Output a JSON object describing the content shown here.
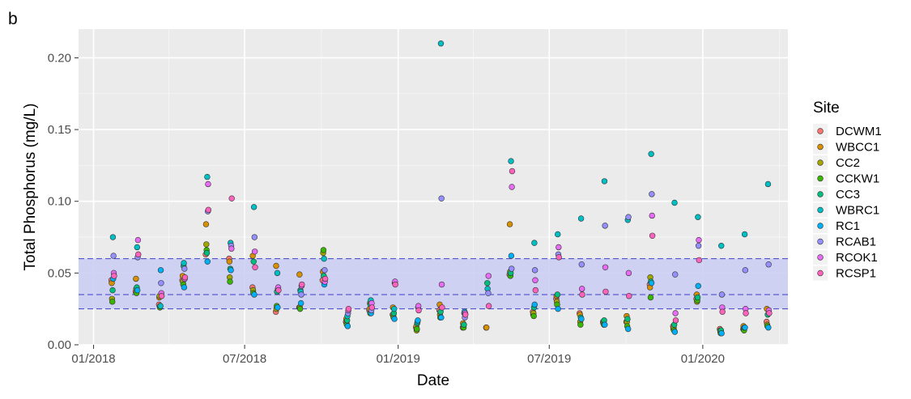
{
  "panel_label": "b",
  "chart_data": {
    "type": "scatter",
    "xlabel": "Date",
    "ylabel": "Total Phosphorus (mg/L)",
    "xlim": [
      "2017-12-14",
      "2020-04-12"
    ],
    "ylim": [
      0,
      0.22
    ],
    "x_ticks": [
      "2018-01-01",
      "2018-07-01",
      "2019-01-01",
      "2019-07-01",
      "2020-01-01"
    ],
    "x_tick_labels": [
      "01/2018",
      "07/2018",
      "01/2019",
      "07/2019",
      "01/2020"
    ],
    "y_ticks": [
      0,
      0.05,
      0.1,
      0.15,
      0.2
    ],
    "y_tick_labels": [
      "0.00",
      "0.05",
      "0.10",
      "0.15",
      "0.20"
    ],
    "grid": true,
    "background": "#ebebeb",
    "reference_band": {
      "lower": 0.025,
      "middle": 0.035,
      "upper": 0.06,
      "fill": "#c9cdf3",
      "line_color": "#4040c8"
    },
    "legend": {
      "title": "Site",
      "placement": "right"
    },
    "dates": [
      "2018-01-24",
      "2018-02-22",
      "2018-03-22",
      "2018-04-19",
      "2018-05-17",
      "2018-06-14",
      "2018-07-12",
      "2018-08-09",
      "2018-09-06",
      "2018-10-04",
      "2018-11-01",
      "2018-11-29",
      "2018-12-27",
      "2019-01-24",
      "2019-02-21",
      "2019-03-21",
      "2019-04-18",
      "2019-05-16",
      "2019-06-13",
      "2019-07-11",
      "2019-08-08",
      "2019-09-05",
      "2019-10-03",
      "2019-10-31",
      "2019-11-28",
      "2019-12-26",
      "2020-01-23",
      "2020-02-20",
      "2020-03-19"
    ],
    "series": [
      {
        "name": "DCWM1",
        "color": "#f8766d",
        "values": [
          0.045,
          0.037,
          0.028,
          0.045,
          0.063,
          0.06,
          0.04,
          0.023,
          0.026,
          0.045,
          0.016,
          0.024,
          0.021,
          0.012,
          0.024,
          0.012,
          0.012,
          0.049,
          0.023,
          0.032,
          0.022,
          0.016,
          0.016,
          0.042,
          0.013,
          0.032,
          0.011,
          0.011,
          0.016
        ]
      },
      {
        "name": "WBCC1",
        "color": "#d89000",
        "values": [
          0.043,
          0.046,
          0.033,
          0.048,
          0.084,
          0.058,
          0.062,
          0.055,
          0.049,
          0.051,
          0.018,
          0.025,
          0.026,
          0.013,
          0.028,
          0.015,
          0.012,
          0.084,
          0.021,
          0.034,
          0.021,
          0.015,
          0.02,
          0.04,
          0.011,
          0.035,
          0.01,
          0.013,
          0.025
        ]
      },
      {
        "name": "CC2",
        "color": "#a3a500",
        "values": [
          0.032,
          0.039,
          0.034,
          0.044,
          0.07,
          0.047,
          0.038,
          0.025,
          0.026,
          0.064,
          0.015,
          0.029,
          0.02,
          0.01,
          0.021,
          0.013,
          null,
          0.051,
          0.022,
          0.03,
          0.016,
          0.015,
          0.016,
          0.047,
          0.012,
          0.03,
          0.009,
          0.011,
          0.014
        ]
      },
      {
        "name": "CCKW1",
        "color": "#39b600",
        "values": [
          0.03,
          0.036,
          0.026,
          0.042,
          0.066,
          0.044,
          0.036,
          0.027,
          0.025,
          0.066,
          0.014,
          0.022,
          0.019,
          0.011,
          0.019,
          0.012,
          null,
          0.048,
          0.02,
          0.028,
          0.014,
          0.014,
          0.013,
          0.033,
          0.01,
          0.031,
          0.008,
          0.01,
          0.013
        ]
      },
      {
        "name": "CC3",
        "color": "#00bf7d",
        "values": [
          0.038,
          0.04,
          0.027,
          0.055,
          0.064,
          0.053,
          0.058,
          0.037,
          0.038,
          0.048,
          0.017,
          0.028,
          0.022,
          0.015,
          0.023,
          0.014,
          0.043,
          0.05,
          0.026,
          0.035,
          0.019,
          0.017,
          0.018,
          0.044,
          0.014,
          0.033,
          0.01,
          0.012,
          0.021
        ]
      },
      {
        "name": "WBRC1",
        "color": "#00bfc4",
        "values": [
          0.075,
          0.068,
          0.027,
          0.057,
          0.117,
          0.071,
          0.096,
          0.05,
          0.037,
          0.06,
          0.02,
          0.031,
          0.025,
          0.016,
          0.21,
          0.022,
          0.039,
          0.128,
          0.071,
          0.077,
          0.088,
          0.114,
          0.087,
          0.133,
          0.099,
          0.089,
          0.069,
          0.077,
          0.112
        ]
      },
      {
        "name": "RC1",
        "color": "#00b0f6",
        "values": [
          0.046,
          0.038,
          0.052,
          0.04,
          0.058,
          0.052,
          0.035,
          0.026,
          0.029,
          0.042,
          0.013,
          0.022,
          0.018,
          0.017,
          0.019,
          0.023,
          null,
          0.062,
          0.028,
          0.025,
          0.018,
          0.014,
          0.011,
          0.043,
          0.009,
          0.041,
          0.008,
          0.012,
          0.012
        ]
      },
      {
        "name": "RCAB1",
        "color": "#9590ff",
        "values": [
          0.062,
          0.061,
          0.043,
          0.053,
          0.093,
          0.069,
          0.075,
          0.039,
          0.035,
          0.052,
          0.022,
          0.024,
          0.043,
          0.026,
          0.102,
          0.019,
          0.036,
          0.053,
          0.052,
          0.063,
          0.056,
          0.083,
          0.089,
          0.105,
          0.049,
          0.069,
          0.035,
          0.052,
          0.056
        ]
      },
      {
        "name": "RCOK1",
        "color": "#e76bf3",
        "values": [
          0.05,
          0.073,
          0.036,
          0.046,
          0.112,
          0.067,
          0.065,
          0.04,
          0.041,
          0.044,
          0.024,
          0.029,
          0.044,
          0.027,
          0.042,
          0.022,
          0.048,
          0.11,
          0.045,
          0.068,
          0.039,
          0.054,
          0.05,
          0.09,
          0.022,
          0.073,
          0.026,
          0.025,
          0.024
        ]
      },
      {
        "name": "RCSP1",
        "color": "#ff62bc",
        "values": [
          0.048,
          0.063,
          0.034,
          0.047,
          0.094,
          0.102,
          0.054,
          0.038,
          0.042,
          0.046,
          0.025,
          0.026,
          0.042,
          0.024,
          0.026,
          0.021,
          0.027,
          0.121,
          0.038,
          0.061,
          0.035,
          0.037,
          0.034,
          0.076,
          0.017,
          0.059,
          0.023,
          0.022,
          0.022
        ]
      }
    ]
  }
}
